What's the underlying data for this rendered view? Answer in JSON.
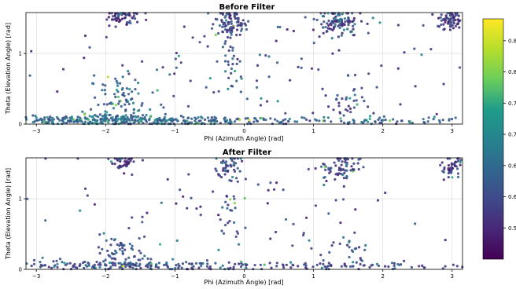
{
  "figure": {
    "colorbar": {
      "ticks": [
        0.55,
        0.6,
        0.65,
        0.7,
        0.75,
        0.8,
        0.85
      ],
      "range": [
        0.5,
        0.885
      ],
      "colormap": [
        "#440154",
        "#482777",
        "#3f4a8a",
        "#31678e",
        "#26838f",
        "#1f9d8a",
        "#6cce5a",
        "#b6de2b",
        "#fee825"
      ]
    }
  },
  "chart_data": [
    {
      "type": "scatter",
      "title": "Before Filter",
      "xlabel": "Phi (Azimuth Angle) [rad]",
      "ylabel": "Theta (Elevation Angle) [rad]",
      "xlim": [
        -3.15,
        3.15
      ],
      "ylim": [
        0,
        1.58
      ],
      "xticks": [
        -3,
        -2,
        -1,
        0,
        1,
        2,
        3
      ],
      "yticks": [
        0,
        1
      ],
      "grid": true,
      "color_scale": [
        0.5,
        0.885
      ],
      "clusters": [
        {
          "phi": -1.75,
          "theta": 1.52,
          "phi_spread": 0.12,
          "theta_spread": 0.06,
          "count": 60,
          "value": 0.55
        },
        {
          "phi": -0.2,
          "theta": 1.45,
          "phi_spread": 0.13,
          "theta_spread": 0.12,
          "count": 90,
          "value": 0.57
        },
        {
          "phi": 1.4,
          "theta": 1.45,
          "phi_spread": 0.16,
          "theta_spread": 0.1,
          "count": 110,
          "value": 0.57
        },
        {
          "phi": 3.0,
          "theta": 1.47,
          "phi_spread": 0.1,
          "theta_spread": 0.08,
          "count": 70,
          "value": 0.56
        },
        {
          "phi": -1.8,
          "theta": 0.3,
          "phi_spread": 0.2,
          "theta_spread": 0.18,
          "count": 90,
          "value": 0.62
        },
        {
          "phi": -0.2,
          "theta": 0.85,
          "phi_spread": 0.08,
          "theta_spread": 0.2,
          "count": 25,
          "value": 0.6
        },
        {
          "phi": 1.45,
          "theta": 0.25,
          "phi_spread": 0.15,
          "theta_spread": 0.1,
          "count": 30,
          "value": 0.58
        },
        {
          "phi": -2.0,
          "theta": 0.06,
          "phi_spread": 0.9,
          "theta_spread": 0.04,
          "count": 260,
          "value": 0.64
        },
        {
          "phi": 0.5,
          "theta": 0.05,
          "phi_spread": 2.2,
          "theta_spread": 0.03,
          "count": 220,
          "value": 0.62
        },
        {
          "phi": 0.0,
          "theta": 0.8,
          "phi_spread": 1.6,
          "theta_spread": 0.45,
          "count": 110,
          "value": 0.57
        }
      ]
    },
    {
      "type": "scatter",
      "title": "After Filter",
      "xlabel": "Phi (Azimuth Angle) [rad]",
      "ylabel": "Theta (Elevation Angle) [rad]",
      "xlim": [
        -3.15,
        3.15
      ],
      "ylim": [
        0,
        1.58
      ],
      "xticks": [
        -3,
        -2,
        -1,
        0,
        1,
        2,
        3
      ],
      "yticks": [
        0,
        1
      ],
      "grid": true,
      "color_scale": [
        0.5,
        0.885
      ],
      "clusters": [
        {
          "phi": -1.75,
          "theta": 1.5,
          "phi_spread": 0.1,
          "theta_spread": 0.06,
          "count": 40,
          "value": 0.56
        },
        {
          "phi": -0.2,
          "theta": 1.45,
          "phi_spread": 0.1,
          "theta_spread": 0.12,
          "count": 45,
          "value": 0.58
        },
        {
          "phi": 1.4,
          "theta": 1.45,
          "phi_spread": 0.15,
          "theta_spread": 0.1,
          "count": 70,
          "value": 0.57
        },
        {
          "phi": 3.0,
          "theta": 1.45,
          "phi_spread": 0.08,
          "theta_spread": 0.08,
          "count": 45,
          "value": 0.56
        },
        {
          "phi": -1.8,
          "theta": 0.28,
          "phi_spread": 0.18,
          "theta_spread": 0.15,
          "count": 60,
          "value": 0.6
        },
        {
          "phi": -0.2,
          "theta": 0.85,
          "phi_spread": 0.08,
          "theta_spread": 0.2,
          "count": 20,
          "value": 0.6
        },
        {
          "phi": 1.45,
          "theta": 0.25,
          "phi_spread": 0.15,
          "theta_spread": 0.1,
          "count": 25,
          "value": 0.58
        },
        {
          "phi": -1.9,
          "theta": 0.06,
          "phi_spread": 0.9,
          "theta_spread": 0.04,
          "count": 130,
          "value": 0.6
        },
        {
          "phi": 0.5,
          "theta": 0.05,
          "phi_spread": 2.2,
          "theta_spread": 0.03,
          "count": 140,
          "value": 0.58
        },
        {
          "phi": 0.0,
          "theta": 0.8,
          "phi_spread": 1.6,
          "theta_spread": 0.45,
          "count": 80,
          "value": 0.56
        }
      ]
    }
  ]
}
